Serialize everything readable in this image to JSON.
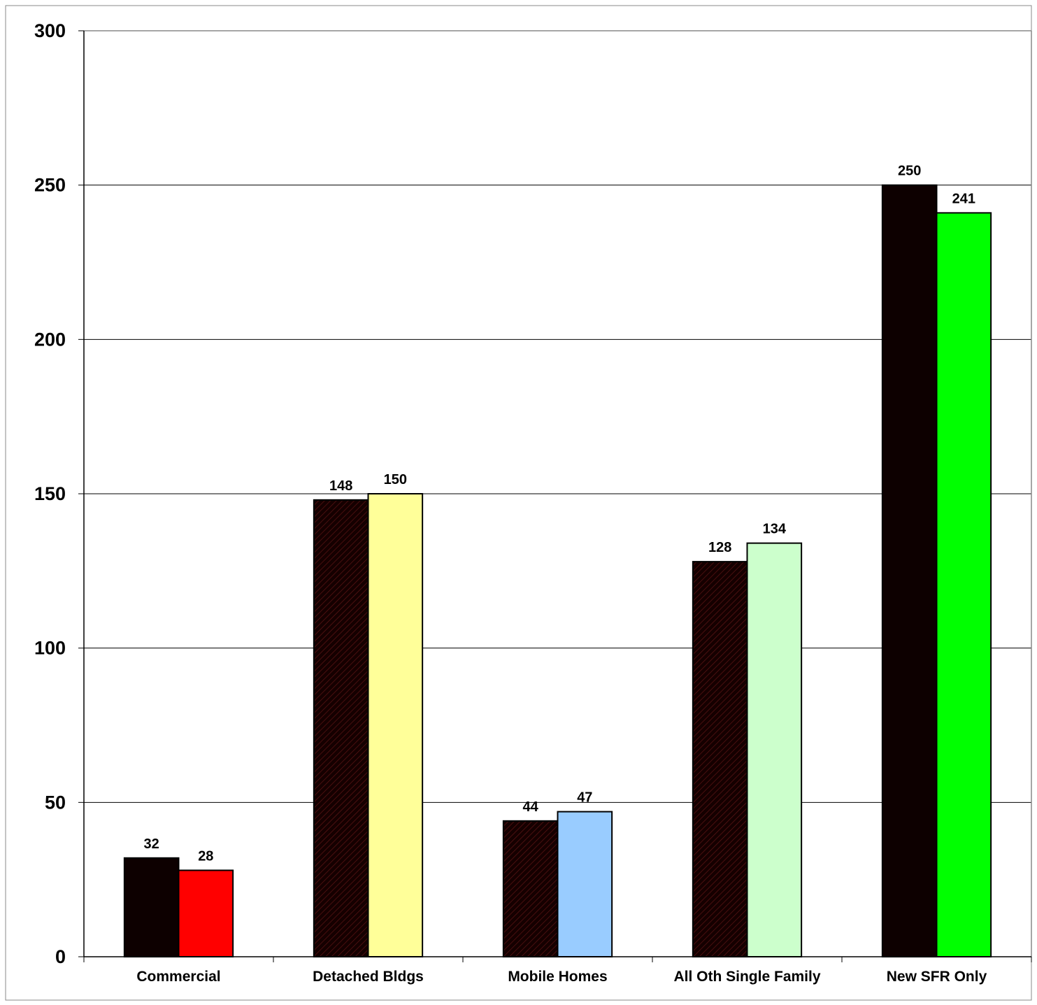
{
  "chart_data": {
    "type": "bar",
    "title": "",
    "xlabel": "",
    "ylabel": "",
    "ylim": [
      0,
      300
    ],
    "yticks": [
      0,
      50,
      100,
      150,
      200,
      250,
      300
    ],
    "grid": true,
    "legend": "none",
    "categories": [
      "Commercial",
      "Detached Bldgs",
      "Mobile Homes",
      "All Oth Single Family",
      "New SFR Only"
    ],
    "series": [
      {
        "values": [
          32,
          148,
          44,
          128,
          250
        ],
        "colors": [
          "#0d0000",
          "#220505",
          "#220505",
          "#220505",
          "#0d0000"
        ],
        "hatched": [
          false,
          true,
          true,
          true,
          false
        ]
      },
      {
        "values": [
          28,
          150,
          47,
          134,
          241
        ],
        "colors": [
          "#ff0000",
          "#ffff99",
          "#99ccff",
          "#ccffcc",
          "#00ff00"
        ]
      }
    ]
  }
}
